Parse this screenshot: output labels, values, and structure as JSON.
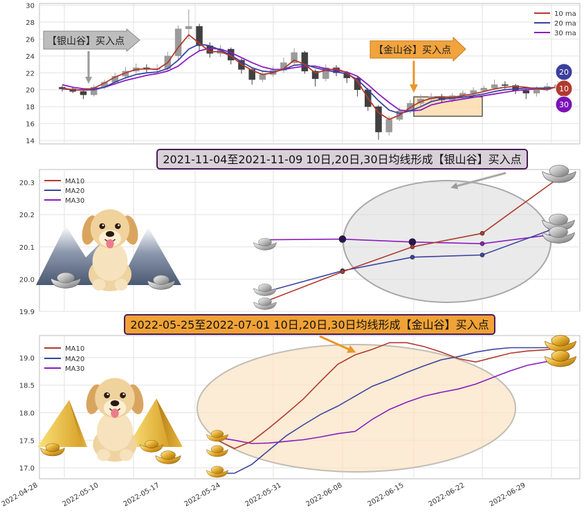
{
  "chart_data": [
    {
      "type": "candlestick",
      "ylim": [
        13.6,
        30.2
      ],
      "yticks": [
        14,
        16,
        18,
        20,
        22,
        24,
        26,
        28,
        30
      ],
      "legend": {
        "position": "top-right",
        "entries": [
          "10 ma",
          "20 ma",
          "30 ma"
        ]
      },
      "annotations": {
        "silver": "【银山谷】买入点",
        "gold": "【金山谷】买入点"
      },
      "badges": [
        "20",
        "10",
        "30"
      ],
      "colors": {
        "ma10": "#b03a2e",
        "ma20": "#3a45a0",
        "ma30": "#8a1cbf",
        "up": "#9b9b9b",
        "down": "#404040"
      },
      "ma10": [
        20.2,
        20.0,
        19.95,
        20.2,
        20.8,
        21.5,
        22.0,
        22.4,
        22.5,
        22.4,
        23.2,
        25.0,
        26.5,
        25.5,
        24.5,
        24.5,
        24.0,
        23.0,
        22.3,
        21.8,
        22.0,
        22.5,
        23.5,
        23.0,
        22.0,
        22.3,
        22.5,
        22.0,
        21.0,
        19.0,
        17.3,
        16.5,
        17.0,
        17.9,
        18.6,
        19.0,
        19.1,
        19.1,
        19.3,
        19.5,
        19.8,
        20.1,
        20.3,
        20.4,
        20.3,
        20.1,
        20.0,
        20.4
      ],
      "ma20": [
        20.1,
        20.0,
        19.96,
        20.0,
        20.3,
        20.9,
        21.4,
        21.8,
        22.0,
        22.1,
        22.5,
        23.5,
        24.8,
        25.4,
        25.2,
        24.7,
        24.1,
        23.3,
        22.6,
        22.2,
        22.1,
        22.4,
        22.9,
        23.0,
        22.6,
        22.3,
        22.1,
        21.9,
        21.2,
        20.0,
        18.7,
        17.6,
        17.2,
        17.5,
        18.0,
        18.6,
        18.9,
        19.0,
        19.1,
        19.3,
        19.5,
        19.8,
        20.0,
        20.1,
        20.2,
        20.2,
        20.2,
        20.3
      ],
      "ma30": [
        20.6,
        20.3,
        20.12,
        20.1,
        20.3,
        20.7,
        21.1,
        21.4,
        21.7,
        21.9,
        22.2,
        22.8,
        23.8,
        24.6,
        24.9,
        24.8,
        24.4,
        23.8,
        23.2,
        22.7,
        22.4,
        22.4,
        22.6,
        22.8,
        22.8,
        22.5,
        22.3,
        22.1,
        21.6,
        20.6,
        19.5,
        18.5,
        17.6,
        17.5,
        17.6,
        18.2,
        18.5,
        18.7,
        18.9,
        19.1,
        19.3,
        19.5,
        19.7,
        19.9,
        20.0,
        20.1,
        20.2,
        20.3
      ],
      "candles": [
        [
          20.3,
          20.1,
          20.5,
          19.8
        ],
        [
          20.1,
          19.8,
          20.3,
          19.6
        ],
        [
          19.8,
          19.4,
          20.0,
          18.9
        ],
        [
          19.4,
          20.3,
          20.6,
          19.2
        ],
        [
          20.3,
          20.9,
          21.2,
          20.1
        ],
        [
          20.9,
          21.6,
          22.0,
          20.6
        ],
        [
          21.6,
          22.2,
          22.7,
          21.3
        ],
        [
          22.2,
          22.6,
          23.1,
          21.9
        ],
        [
          22.6,
          22.4,
          23.0,
          22.0
        ],
        [
          22.4,
          22.5,
          23.0,
          22.0
        ],
        [
          22.5,
          24.0,
          24.5,
          22.3
        ],
        [
          24.0,
          27.2,
          27.6,
          23.6
        ],
        [
          27.2,
          27.5,
          29.5,
          26.0
        ],
        [
          27.5,
          25.2,
          27.8,
          24.6
        ],
        [
          25.2,
          24.3,
          25.6,
          23.8
        ],
        [
          24.3,
          24.8,
          25.3,
          23.9
        ],
        [
          24.8,
          23.5,
          25.0,
          23.0
        ],
        [
          23.5,
          22.4,
          23.7,
          21.9
        ],
        [
          22.4,
          21.2,
          22.6,
          20.6
        ],
        [
          21.2,
          21.8,
          22.3,
          20.9
        ],
        [
          21.8,
          22.3,
          22.8,
          21.5
        ],
        [
          22.3,
          23.2,
          23.8,
          22.0
        ],
        [
          23.2,
          24.4,
          24.9,
          22.9
        ],
        [
          24.4,
          22.2,
          24.6,
          21.9
        ],
        [
          22.2,
          21.3,
          22.4,
          20.4
        ],
        [
          21.3,
          22.6,
          23.0,
          21.0
        ],
        [
          22.6,
          22.0,
          22.9,
          21.6
        ],
        [
          22.0,
          21.4,
          22.2,
          20.8
        ],
        [
          21.4,
          20.0,
          21.5,
          19.2
        ],
        [
          20.0,
          18.0,
          20.2,
          17.5
        ],
        [
          18.0,
          15.0,
          18.2,
          14.1
        ],
        [
          15.0,
          16.5,
          16.9,
          14.6
        ],
        [
          16.5,
          17.5,
          17.9,
          16.3
        ],
        [
          17.5,
          18.4,
          18.8,
          17.2
        ],
        [
          18.4,
          18.9,
          19.4,
          18.1
        ],
        [
          18.9,
          19.2,
          19.6,
          18.6
        ],
        [
          19.2,
          18.8,
          19.5,
          18.4
        ],
        [
          18.8,
          19.3,
          19.6,
          18.5
        ],
        [
          19.3,
          19.6,
          19.9,
          19.1
        ],
        [
          19.6,
          19.9,
          20.3,
          19.4
        ],
        [
          19.9,
          20.2,
          20.5,
          19.7
        ],
        [
          20.2,
          20.6,
          21.2,
          20.0
        ],
        [
          20.6,
          20.5,
          21.0,
          20.1
        ],
        [
          20.5,
          19.9,
          20.7,
          19.5
        ],
        [
          19.9,
          19.6,
          20.1,
          18.9
        ],
        [
          19.6,
          20.0,
          20.4,
          19.2
        ],
        [
          20.0,
          20.4,
          20.8,
          19.8
        ],
        [
          20.4,
          20.6,
          21.0,
          20.2
        ]
      ]
    },
    {
      "type": "line",
      "title": "2021-11-04至2021-11-09 10日,20日,30日均线形成【银山谷】买入点",
      "ylim": [
        19.9,
        20.34
      ],
      "yticks": [
        "19.9",
        "20.0",
        "20.1",
        "20.2",
        "20.3"
      ],
      "legend": {
        "position": "top-left",
        "entries": [
          "MA10",
          "MA20",
          "MA30"
        ]
      },
      "series": [
        {
          "name": "MA10",
          "color": "#b03a2e",
          "values": [
            19.93,
            20.023,
            20.1,
            20.142,
            20.31
          ]
        },
        {
          "name": "MA20",
          "color": "#3a45a0",
          "values": [
            19.96,
            20.026,
            20.068,
            20.075,
            20.16
          ]
        },
        {
          "name": "MA30",
          "color": "#8a1cbf",
          "values": [
            20.122,
            20.124,
            20.115,
            20.11,
            20.14
          ]
        }
      ]
    },
    {
      "type": "line",
      "title": "2022-05-25至2022-07-01 10日,20日,30日均线形成【金山谷】买入点",
      "ylim": [
        16.8,
        19.4
      ],
      "yticks": [
        "17.0",
        "17.5",
        "18.0",
        "18.5",
        "19.0"
      ],
      "legend": {
        "position": "top-left",
        "entries": [
          "MA10",
          "MA20",
          "MA30"
        ]
      },
      "x_tick_labels": [
        "2022-04-28",
        "2022-05-10",
        "2022-05-17",
        "2022-05-24",
        "2022-05-31",
        "2022-06-08",
        "2022-06-15",
        "2022-06-22",
        "2022-06-29"
      ],
      "series": [
        {
          "name": "MA10",
          "color": "#b03a2e",
          "values": [
            17.5,
            17.35,
            17.48,
            17.72,
            17.98,
            18.25,
            18.57,
            18.88,
            19.05,
            19.15,
            19.27,
            19.27,
            19.2,
            19.1,
            18.98,
            18.92,
            19.0,
            19.08,
            19.12,
            19.14,
            19.18
          ]
        },
        {
          "name": "MA20",
          "color": "#3a45a0",
          "values": [
            16.9,
            16.9,
            17.06,
            17.32,
            17.58,
            17.78,
            17.97,
            18.12,
            18.3,
            18.48,
            18.6,
            18.73,
            18.85,
            18.96,
            19.02,
            19.1,
            19.15,
            19.18,
            19.18,
            19.18,
            19.19
          ]
        },
        {
          "name": "MA30",
          "color": "#8a1cbf",
          "values": [
            17.55,
            17.5,
            17.44,
            17.45,
            17.48,
            17.51,
            17.56,
            17.62,
            17.66,
            17.88,
            18.06,
            18.19,
            18.3,
            18.37,
            18.43,
            18.52,
            18.64,
            18.76,
            18.86,
            18.92,
            18.96
          ]
        }
      ]
    }
  ]
}
